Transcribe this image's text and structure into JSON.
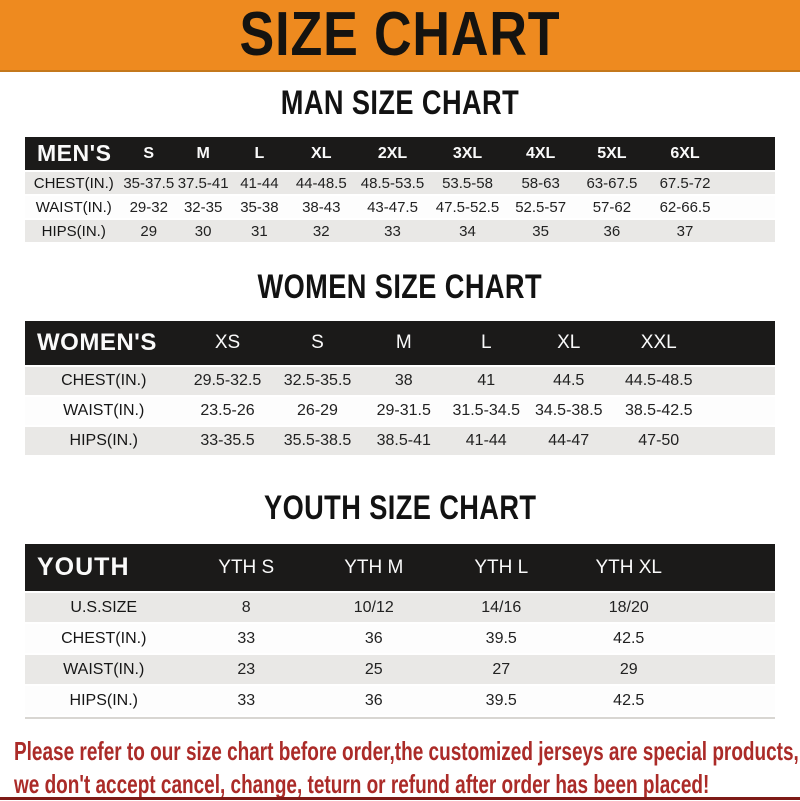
{
  "banner": {
    "title": "SIZE CHART"
  },
  "colors": {
    "banner_orange": "#EE8A1F",
    "table_header_black": "#1B1A19",
    "row_gray": "#E9E8E6",
    "row_white": "#FDFDFD",
    "disclaimer_red": "#AB2B28",
    "bottom_line_red": "#7E1B17"
  },
  "sections": [
    {
      "id": "men",
      "heading": "MAN SIZE CHART",
      "corner_label": "MEN'S",
      "columns": [
        "S",
        "M",
        "L",
        "XL",
        "2XL",
        "3XL",
        "4XL",
        "5XL",
        "6XL"
      ],
      "rows": [
        {
          "label": "CHEST(IN.)",
          "values": [
            "35-37.5",
            "37.5-41",
            "41-44",
            "44-48.5",
            "48.5-53.5",
            "53.5-58",
            "58-63",
            "63-67.5",
            "67.5-72"
          ]
        },
        {
          "label": "WAIST(IN.)",
          "values": [
            "29-32",
            "32-35",
            "35-38",
            "38-43",
            "43-47.5",
            "47.5-52.5",
            "52.5-57",
            "57-62",
            "62-66.5"
          ]
        },
        {
          "label": "HIPS(IN.)",
          "values": [
            "29",
            "30",
            "31",
            "32",
            "33",
            "34",
            "35",
            "36",
            "37"
          ]
        }
      ]
    },
    {
      "id": "women",
      "heading": "WOMEN SIZE CHART",
      "corner_label": "WOMEN'S",
      "columns": [
        "XS",
        "S",
        "M",
        "L",
        "XL",
        "XXL"
      ],
      "rows": [
        {
          "label": "CHEST(IN.)",
          "values": [
            "29.5-32.5",
            "32.5-35.5",
            "38",
            "41",
            "44.5",
            "44.5-48.5"
          ]
        },
        {
          "label": "WAIST(IN.)",
          "values": [
            "23.5-26",
            "26-29",
            "29-31.5",
            "31.5-34.5",
            "34.5-38.5",
            "38.5-42.5"
          ]
        },
        {
          "label": "HIPS(IN.)",
          "values": [
            "33-35.5",
            "35.5-38.5",
            "38.5-41",
            "41-44",
            "44-47",
            "47-50"
          ]
        }
      ]
    },
    {
      "id": "youth",
      "heading": "YOUTH SIZE CHART",
      "corner_label": "YOUTH",
      "columns": [
        "YTH S",
        "YTH M",
        "YTH L",
        "YTH XL"
      ],
      "rows": [
        {
          "label": "U.S.SIZE",
          "values": [
            "8",
            "10/12",
            "14/16",
            "18/20"
          ]
        },
        {
          "label": "CHEST(IN.)",
          "values": [
            "33",
            "36",
            "39.5",
            "42.5"
          ]
        },
        {
          "label": "WAIST(IN.)",
          "values": [
            "23",
            "25",
            "27",
            "29"
          ]
        },
        {
          "label": "HIPS(IN.)",
          "values": [
            "33",
            "36",
            "39.5",
            "42.5"
          ]
        }
      ]
    }
  ],
  "disclaimer": {
    "line1": "Please refer to our size chart before order,the customized jerseys are special products,",
    "line2": "we don't accept cancel, change, teturn or refund after order has been placed!"
  }
}
